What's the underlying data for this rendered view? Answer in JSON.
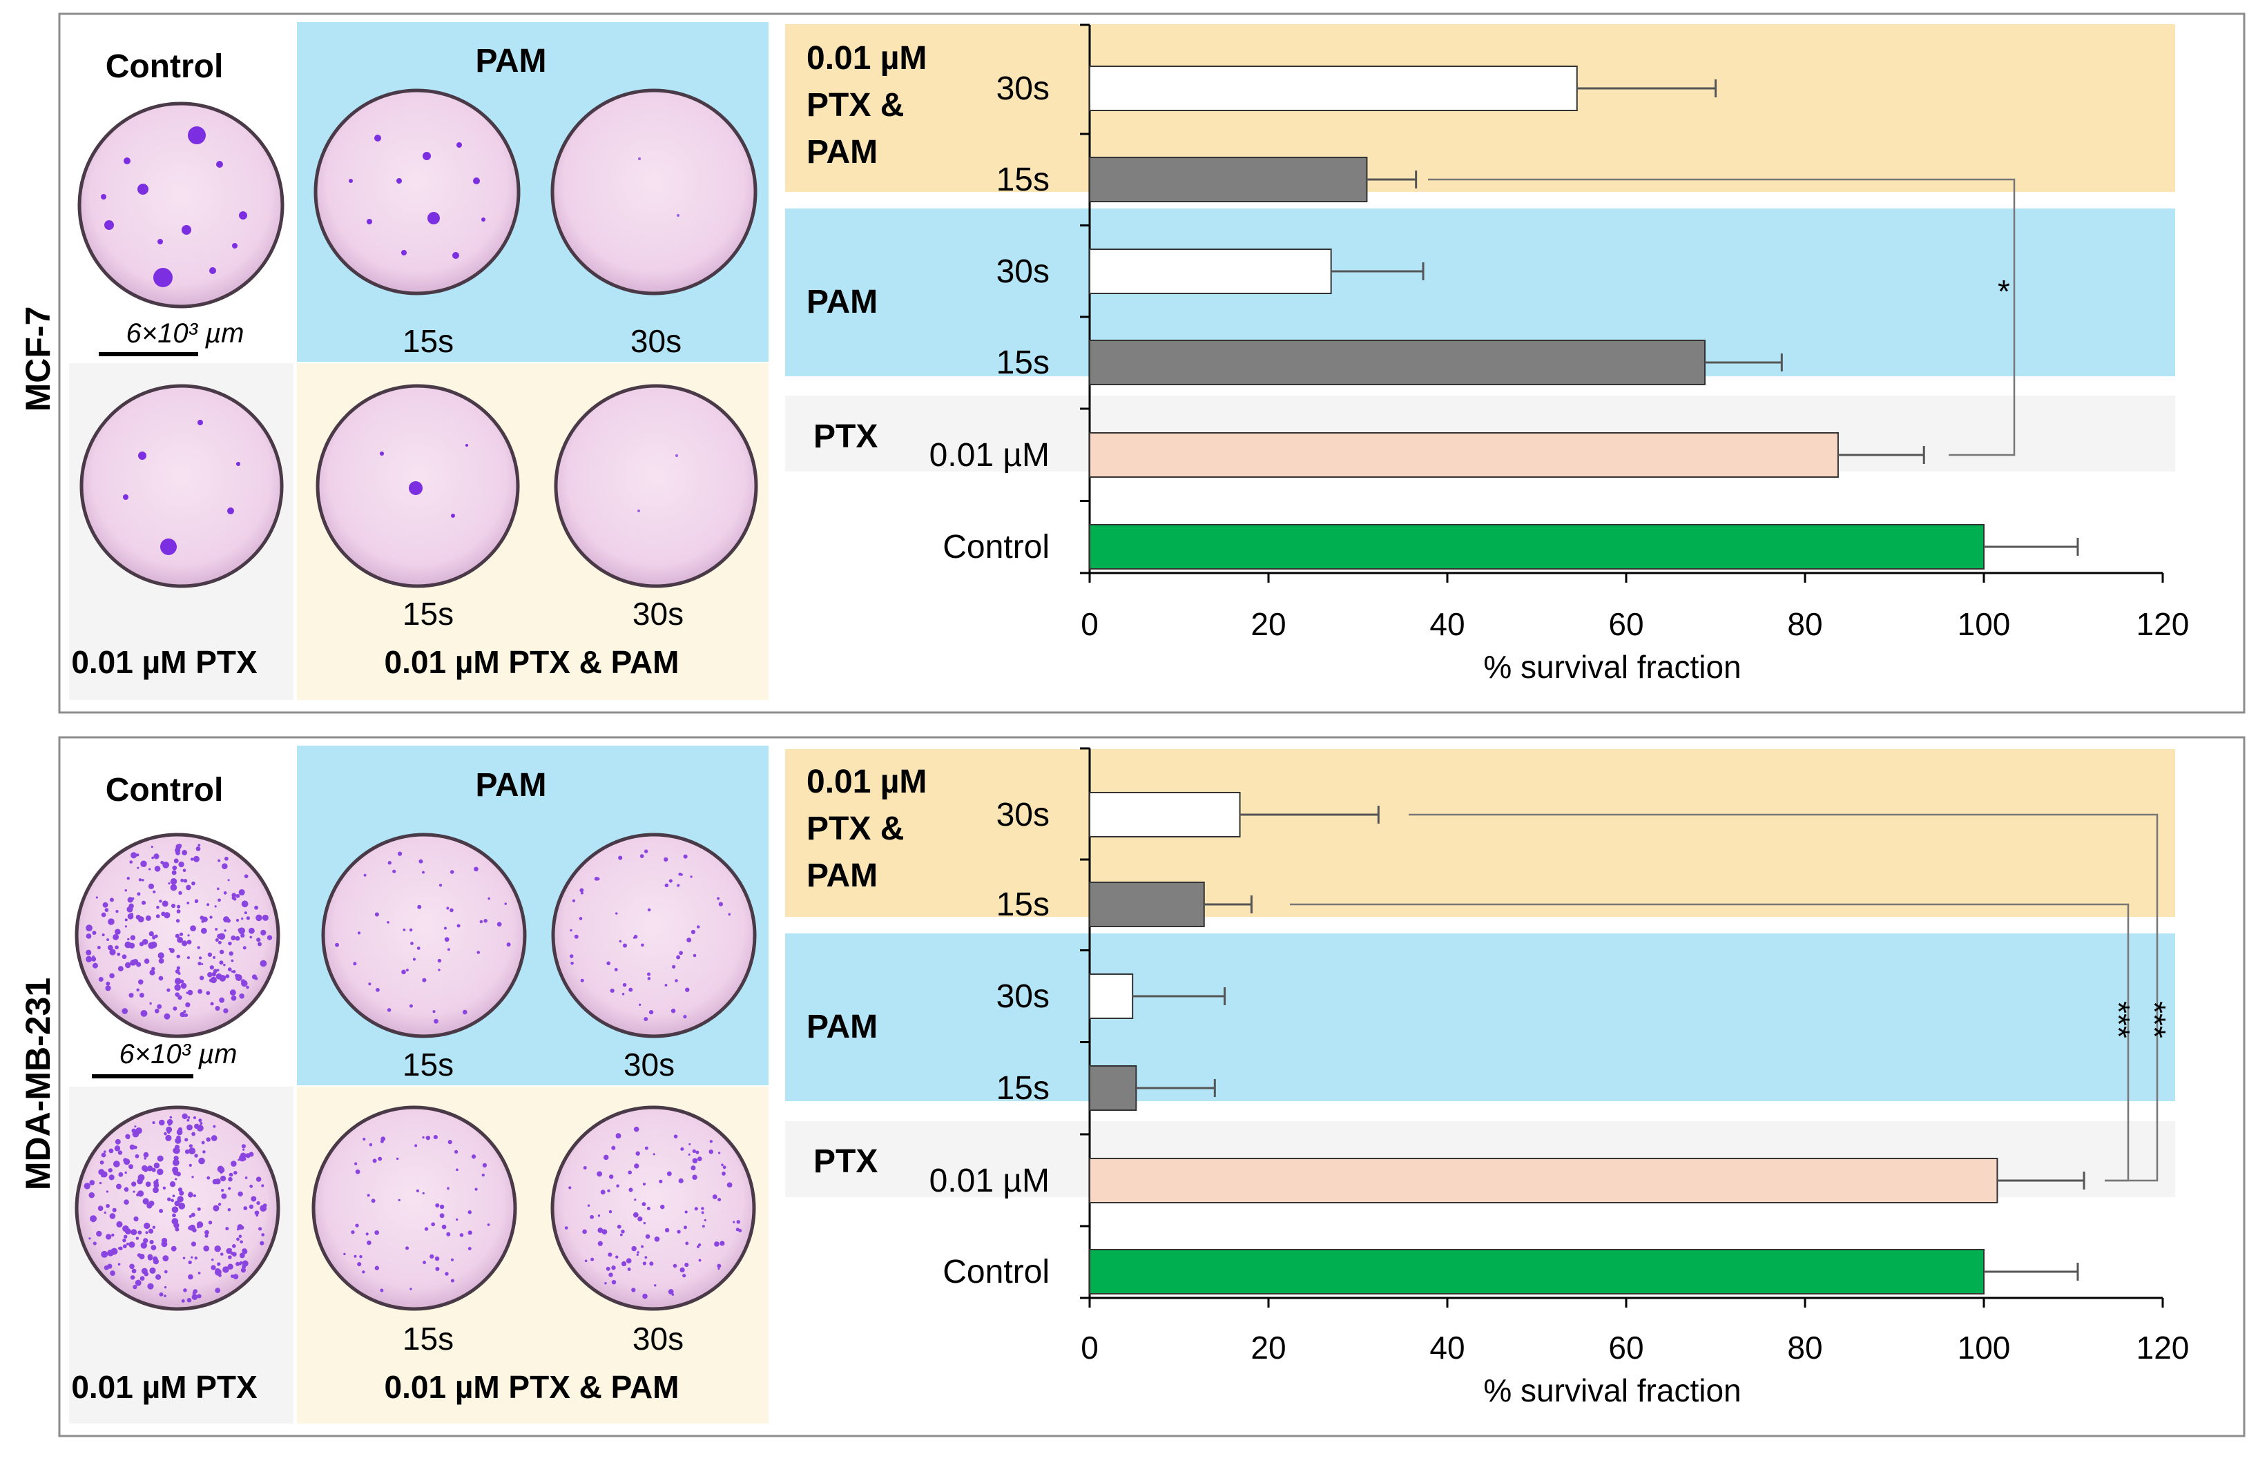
{
  "colors": {
    "control": "#00B050",
    "ptx": "#F8D7C4",
    "pam15": "#7F7F7F",
    "pam30": "#FFFFFF",
    "bg_combo": "#FCE5B4",
    "bg_pam": "#B3E5F6",
    "bg_ptx": "#F4F4F4",
    "bg_combo_light": "#FDF6E3",
    "dish_fill": "#F2D7EC",
    "colony": "#7B2FE0"
  },
  "panels": [
    {
      "cell_line": "MCF-7",
      "images": {
        "control_label": "Control",
        "pam_label": "PAM",
        "ptx_label": "0.01 µM PTX",
        "combo_label": "0.01 µM PTX & PAM",
        "time_15": "15s",
        "time_30": "30s",
        "scale_bar": "6×10³ µm"
      },
      "groups": [
        {
          "label_lines": [
            "0.01 µM",
            "PTX &",
            "PAM"
          ]
        },
        {
          "label_lines": [
            "PAM"
          ]
        },
        {
          "label_lines": [
            "PTX"
          ]
        }
      ],
      "significance": [
        "*"
      ]
    },
    {
      "cell_line": "MDA-MB-231",
      "images": {
        "control_label": "Control",
        "pam_label": "PAM",
        "ptx_label": "0.01 µM PTX",
        "combo_label": "0.01 µM PTX & PAM",
        "time_15": "15s",
        "time_30": "30s",
        "scale_bar": "6×10³ µm"
      },
      "groups": [
        {
          "label_lines": [
            "0.01 µM",
            "PTX &",
            "PAM"
          ]
        },
        {
          "label_lines": [
            "PAM"
          ]
        },
        {
          "label_lines": [
            "PTX"
          ]
        }
      ],
      "significance": [
        "***",
        "***"
      ]
    }
  ],
  "chart_data": [
    {
      "type": "bar",
      "orientation": "horizontal",
      "panel": "MCF-7",
      "xlabel": "% survival fraction",
      "xlim": [
        0,
        120
      ],
      "xticks": [
        0,
        20,
        40,
        60,
        80,
        100,
        120
      ],
      "categories": [
        "30s",
        "15s",
        "30s",
        "15s",
        "0.01 µM",
        "Control"
      ],
      "groups": [
        "0.01 µM PTX & PAM",
        "0.01 µM PTX & PAM",
        "PAM",
        "PAM",
        "PTX",
        "Control"
      ],
      "values": [
        54.5,
        31,
        27,
        68.8,
        83.7,
        100
      ],
      "errors": [
        15.5,
        5.5,
        10.3,
        8.6,
        9.6,
        10.5
      ],
      "bar_colors": [
        "#FFFFFF",
        "#7F7F7F",
        "#FFFFFF",
        "#7F7F7F",
        "#F8D7C4",
        "#00B050"
      ],
      "comparisons": [
        {
          "from": "0.01 µM PTX & PAM 15s",
          "to": "PTX 0.01 µM",
          "label": "*"
        }
      ]
    },
    {
      "type": "bar",
      "orientation": "horizontal",
      "panel": "MDA-MB-231",
      "xlabel": "% survival fraction",
      "xlim": [
        0,
        120
      ],
      "xticks": [
        0,
        20,
        40,
        60,
        80,
        100,
        120
      ],
      "categories": [
        "30s",
        "15s",
        "30s",
        "15s",
        "0.01 µM",
        "Control"
      ],
      "groups": [
        "0.01 µM PTX & PAM",
        "0.01 µM PTX & PAM",
        "PAM",
        "PAM",
        "PTX",
        "Control"
      ],
      "values": [
        16.8,
        12.8,
        4.8,
        5.2,
        101.5,
        100
      ],
      "errors": [
        15.5,
        5.3,
        10.3,
        8.8,
        9.7,
        10.5
      ],
      "bar_colors": [
        "#FFFFFF",
        "#7F7F7F",
        "#FFFFFF",
        "#7F7F7F",
        "#F8D7C4",
        "#00B050"
      ],
      "comparisons": [
        {
          "from": "0.01 µM PTX & PAM 30s",
          "to": "PTX 0.01 µM",
          "label": "***"
        },
        {
          "from": "0.01 µM PTX & PAM 15s",
          "to": "PTX 0.01 µM",
          "label": "***"
        }
      ]
    }
  ]
}
